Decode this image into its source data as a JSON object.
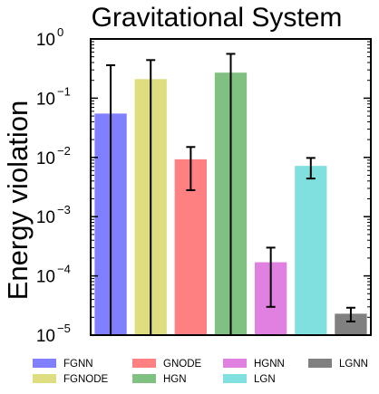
{
  "chart_data": {
    "type": "bar",
    "title": "Gravitational System",
    "ylabel": "Energy violation",
    "xlabel": "",
    "yscale": "log",
    "ylim": [
      1e-05,
      1
    ],
    "y_ticks": [
      {
        "base": "10",
        "exp": "−5",
        "value": 1e-05
      },
      {
        "base": "10",
        "exp": "−4",
        "value": 0.0001
      },
      {
        "base": "10",
        "exp": "−3",
        "value": 0.001
      },
      {
        "base": "10",
        "exp": "−2",
        "value": 0.01
      },
      {
        "base": "10",
        "exp": "−1",
        "value": 0.1
      },
      {
        "base": "10",
        "exp": "0",
        "value": 1
      }
    ],
    "categories": [
      "FGNN",
      "FGNODE",
      "GNODE",
      "HGN",
      "HGNN",
      "LGN",
      "LGNN"
    ],
    "values": [
      0.055,
      0.21,
      0.0093,
      0.27,
      0.00017,
      0.0072,
      2.3e-05
    ],
    "err_low": [
      1e-05,
      1e-05,
      0.0028,
      1e-05,
      3e-05,
      0.0044,
      1.7e-05
    ],
    "err_high": [
      0.36,
      0.44,
      0.015,
      0.56,
      0.0003,
      0.0098,
      2.9e-05
    ],
    "colors": [
      "#8080ff",
      "#dede80",
      "#ff8080",
      "#80c080",
      "#e080e0",
      "#80e0e0",
      "#808080"
    ],
    "grid": false,
    "legend_position": "bottom",
    "legend_columns": 4
  }
}
